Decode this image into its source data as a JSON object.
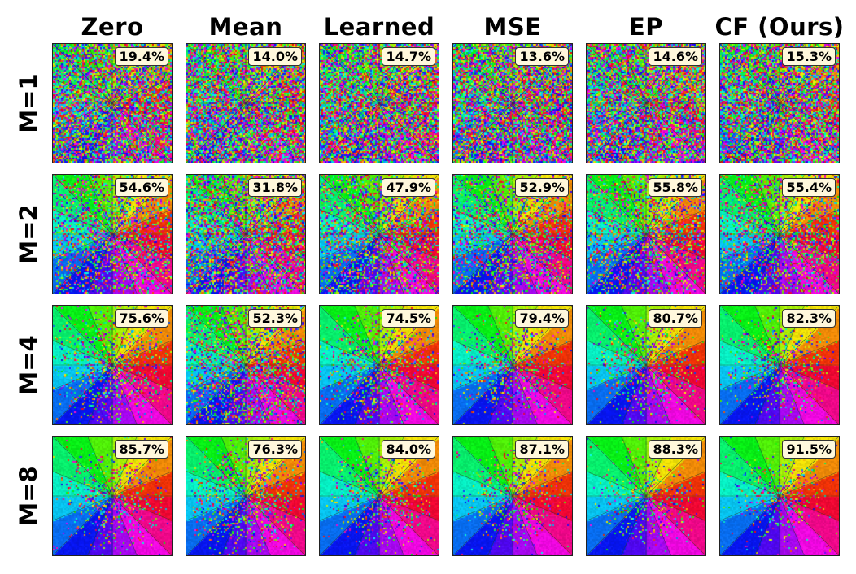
{
  "chart_data": {
    "type": "heatmap",
    "columns": [
      "Zero",
      "Mean",
      "Learned",
      "MSE",
      "EP",
      "CF (Ours)"
    ],
    "rows": [
      "M=1",
      "M=2",
      "M=4",
      "M=8"
    ],
    "values": [
      [
        "19.4%",
        "14.0%",
        "14.7%",
        "13.6%",
        "14.6%",
        "15.3%"
      ],
      [
        "54.6%",
        "31.8%",
        "47.9%",
        "52.9%",
        "55.8%",
        "55.4%"
      ],
      [
        "75.6%",
        "52.3%",
        "74.5%",
        "79.4%",
        "80.7%",
        "82.3%"
      ],
      [
        "85.7%",
        "76.3%",
        "84.0%",
        "87.1%",
        "88.3%",
        "91.5%"
      ]
    ],
    "accuracy": [
      [
        19.4,
        14.0,
        14.7,
        13.6,
        14.6,
        15.3
      ],
      [
        54.6,
        31.8,
        47.9,
        52.9,
        55.8,
        55.4
      ],
      [
        75.6,
        52.3,
        74.5,
        79.4,
        80.7,
        82.3
      ],
      [
        85.7,
        76.3,
        84.0,
        87.1,
        88.3,
        91.5
      ]
    ],
    "sectors": 16,
    "grid": false
  }
}
